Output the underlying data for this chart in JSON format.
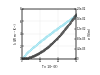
{
  "title_left": "λ (W m⁻¹ K⁻¹)",
  "title_right": "σ (S/m)",
  "xlabel": "T × 10³ (K)",
  "xlim": [
    0,
    30
  ],
  "ylim_left": [
    0,
    0.08
  ],
  "ylim_right": [
    0,
    0.02
  ],
  "lambda_color": "#88ddee",
  "sigma_color": "#444444",
  "bg_color": "#ffffff",
  "grid_color": "#cccccc"
}
